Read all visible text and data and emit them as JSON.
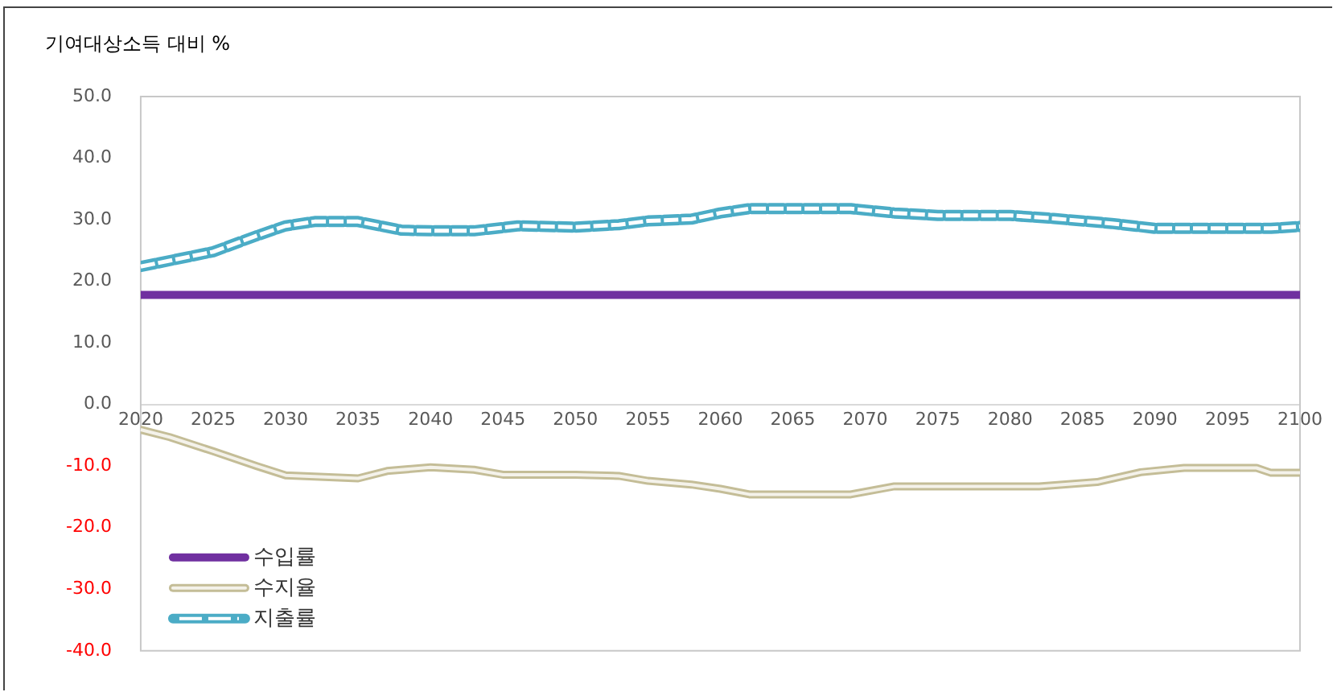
{
  "chart_data": {
    "type": "line",
    "ylabel": "기여대상소득 대비 %",
    "xlim": [
      2020,
      2100
    ],
    "xticks": [
      2020,
      2025,
      2030,
      2035,
      2040,
      2045,
      2050,
      2055,
      2060,
      2065,
      2070,
      2075,
      2080,
      2085,
      2090,
      2095,
      2100
    ],
    "ylim": [
      -40,
      50
    ],
    "yticks": [
      {
        "value": 50,
        "label": "50.0"
      },
      {
        "value": 40,
        "label": "40.0"
      },
      {
        "value": 30,
        "label": "30.0"
      },
      {
        "value": 20,
        "label": "20.0"
      },
      {
        "value": 10,
        "label": "10.0"
      },
      {
        "value": 0,
        "label": "0.0"
      },
      {
        "value": -10,
        "label": "-10.0"
      },
      {
        "value": -20,
        "label": "-20.0"
      },
      {
        "value": -30,
        "label": "-30.0"
      },
      {
        "value": -40,
        "label": "-40.0"
      }
    ],
    "grid": false,
    "legend": "bottom left",
    "marker": "none",
    "series": [
      {
        "name": "수입률",
        "color": "#7030a0",
        "line_style": "solid",
        "x": [
          2020,
          2100
        ],
        "values": [
          17.8,
          17.8
        ]
      },
      {
        "name": "수지율",
        "color": "#c4bd97",
        "line_style": "solid",
        "x": [
          2020,
          2022,
          2025,
          2028,
          2030,
          2035,
          2037,
          2040,
          2043,
          2045,
          2050,
          2053,
          2055,
          2058,
          2060,
          2062,
          2069,
          2072,
          2082,
          2086,
          2089,
          2092,
          2097,
          2098,
          2100
        ],
        "values": [
          -4.1,
          -5.3,
          -7.6,
          -10,
          -11.5,
          -12,
          -10.8,
          -10.2,
          -10.6,
          -11.4,
          -11.4,
          -11.6,
          -12.4,
          -13,
          -13.7,
          -14.6,
          -14.6,
          -13.3,
          -13.3,
          -12.6,
          -11,
          -10.3,
          -10.3,
          -11.1,
          -11.1
        ]
      },
      {
        "name": "지출률",
        "color": "#4bacc6",
        "line_style": "dashed",
        "x": [
          2020,
          2025,
          2028,
          2030,
          2032,
          2035,
          2038,
          2040,
          2043,
          2046,
          2050,
          2053,
          2055,
          2058,
          2060,
          2062,
          2069,
          2072,
          2075,
          2080,
          2083,
          2087,
          2090,
          2098,
          2100
        ],
        "values": [
          22.4,
          24.8,
          27.4,
          29,
          29.7,
          29.7,
          28.3,
          28.2,
          28.2,
          29,
          28.8,
          29.2,
          29.8,
          30.1,
          31.1,
          31.8,
          31.8,
          31.1,
          30.7,
          30.7,
          30.2,
          29.4,
          28.6,
          28.6,
          28.9
        ]
      }
    ]
  }
}
